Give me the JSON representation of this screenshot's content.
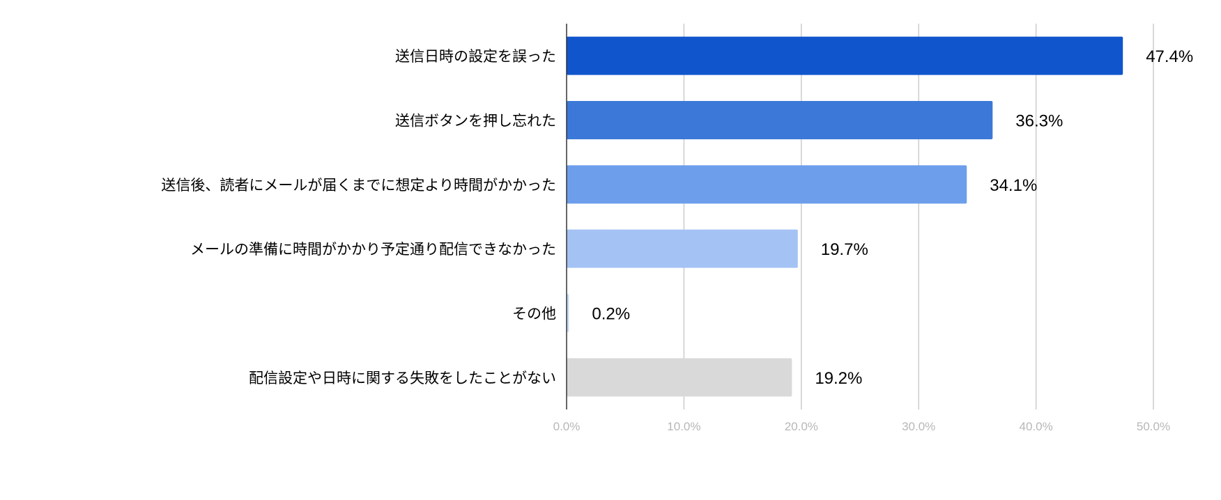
{
  "chart_data": {
    "type": "bar",
    "orientation": "horizontal",
    "title": "",
    "xlabel": "",
    "ylabel": "",
    "categories": [
      "送信日時の設定を誤った",
      "送信ボタンを押し忘れた",
      "送信後、読者にメールが届くまでに想定より時間がかかった",
      "メールの準備に時間がかかり予定通り配信できなかった",
      "その他",
      "配信設定や日時に関する失敗をしたことがない"
    ],
    "values": [
      47.4,
      36.3,
      34.1,
      19.7,
      0.2,
      19.2
    ],
    "data_labels": [
      "47.4%",
      "36.3%",
      "34.1%",
      "19.7%",
      "0.2%",
      "19.2%"
    ],
    "colors": [
      "#1155cc",
      "#3c78d8",
      "#6d9eeb",
      "#a4c2f4",
      "#c9daf8",
      "#d9d9d9"
    ],
    "xlim": [
      0,
      50
    ],
    "x_ticks": [
      "0.0%",
      "10.0%",
      "20.0%",
      "30.0%",
      "40.0%",
      "50.0%"
    ],
    "grid": true,
    "legend": "none"
  }
}
